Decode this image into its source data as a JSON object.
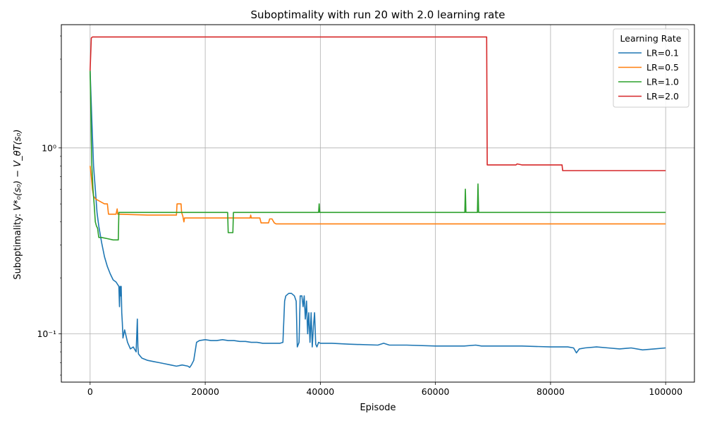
{
  "chart_data": {
    "type": "line",
    "title": "Suboptimality with run 20 with 2.0 learning rate",
    "xlabel": "Episode",
    "ylabel_prefix": "Suboptimality: ",
    "ylabel_math": "V*₀(s₀) − V_θT(s₀)",
    "x_scale": "linear",
    "y_scale": "log",
    "xlim": [
      -5000,
      105000
    ],
    "ylim": [
      0.055,
      4.6
    ],
    "grid": true,
    "x_ticks": [
      0,
      20000,
      40000,
      60000,
      80000,
      100000
    ],
    "x_tick_labels": [
      "0",
      "20000",
      "40000",
      "60000",
      "80000",
      "100000"
    ],
    "y_ticks": [
      0.1,
      1.0
    ],
    "y_tick_labels": [
      "10⁻¹",
      "10⁰"
    ],
    "y_minor_ticks": [
      0.06,
      0.07,
      0.08,
      0.09,
      0.2,
      0.3,
      0.4,
      0.5,
      0.6,
      0.7,
      0.8,
      0.9,
      2,
      3,
      4
    ],
    "legend": {
      "title": "Learning Rate",
      "placement": "top-right",
      "entries": [
        "LR=0.1",
        "LR=0.5",
        "LR=1.0",
        "LR=2.0"
      ]
    },
    "series": [
      {
        "name": "LR=0.1",
        "color": "#1f77b4",
        "x": [
          0,
          300,
          600,
          900,
          1200,
          1500,
          2000,
          2500,
          3000,
          3500,
          4000,
          4500,
          5000,
          5100,
          5200,
          5300,
          5400,
          5500,
          5600,
          5700,
          6000,
          6500,
          7000,
          7500,
          8000,
          8200,
          8300,
          8400,
          8700,
          9000,
          10000,
          11000,
          12000,
          13000,
          14000,
          15000,
          16000,
          17000,
          17300,
          17600,
          18000,
          18500,
          19000,
          20000,
          21000,
          22000,
          23000,
          24000,
          25000,
          26000,
          27000,
          28000,
          29000,
          30000,
          31000,
          32000,
          33000,
          33500,
          33800,
          34000,
          34500,
          35000,
          35500,
          35800,
          36000,
          36300,
          36500,
          36800,
          37000,
          37200,
          37400,
          37600,
          37800,
          38000,
          38200,
          38400,
          38600,
          38800,
          39000,
          39200,
          39400,
          39700,
          40000,
          42000,
          45000,
          50000,
          51000,
          52000,
          55000,
          60000,
          62000,
          65000,
          67000,
          68000,
          70000,
          75000,
          80000,
          82000,
          83000,
          84000,
          84500,
          85000,
          86000,
          88000,
          90000,
          92000,
          94000,
          96000,
          98000,
          100000
        ],
        "y": [
          2.6,
          1.4,
          0.8,
          0.6,
          0.45,
          0.38,
          0.31,
          0.26,
          0.23,
          0.21,
          0.195,
          0.19,
          0.18,
          0.14,
          0.18,
          0.16,
          0.18,
          0.13,
          0.115,
          0.095,
          0.105,
          0.09,
          0.083,
          0.085,
          0.08,
          0.12,
          0.085,
          0.078,
          0.076,
          0.074,
          0.072,
          0.071,
          0.07,
          0.069,
          0.068,
          0.067,
          0.068,
          0.067,
          0.066,
          0.068,
          0.072,
          0.09,
          0.092,
          0.093,
          0.092,
          0.092,
          0.093,
          0.092,
          0.092,
          0.091,
          0.091,
          0.09,
          0.09,
          0.089,
          0.089,
          0.089,
          0.089,
          0.09,
          0.15,
          0.16,
          0.165,
          0.165,
          0.16,
          0.15,
          0.085,
          0.09,
          0.16,
          0.16,
          0.14,
          0.16,
          0.12,
          0.15,
          0.1,
          0.13,
          0.09,
          0.13,
          0.085,
          0.11,
          0.13,
          0.088,
          0.085,
          0.09,
          0.089,
          0.089,
          0.088,
          0.087,
          0.089,
          0.087,
          0.087,
          0.086,
          0.086,
          0.086,
          0.087,
          0.086,
          0.086,
          0.086,
          0.085,
          0.085,
          0.085,
          0.084,
          0.079,
          0.083,
          0.084,
          0.085,
          0.084,
          0.083,
          0.084,
          0.082,
          0.083,
          0.084
        ]
      },
      {
        "name": "LR=0.5",
        "color": "#ff7f0e",
        "x": [
          0,
          200,
          400,
          600,
          1000,
          1500,
          2000,
          2500,
          3000,
          3200,
          3300,
          4500,
          4700,
          4800,
          5000,
          10000,
          15000,
          15100,
          15800,
          15900,
          16100,
          16300,
          16400,
          16500,
          20000,
          25000,
          27800,
          27900,
          28000,
          29500,
          29700,
          30500,
          31000,
          31200,
          31600,
          32000,
          32300,
          32500,
          35000,
          40000,
          50000,
          60000,
          70000,
          80000,
          90000,
          100000
        ],
        "y": [
          0.8,
          0.7,
          0.6,
          0.55,
          0.53,
          0.52,
          0.51,
          0.5,
          0.5,
          0.44,
          0.44,
          0.44,
          0.47,
          0.44,
          0.44,
          0.435,
          0.435,
          0.5,
          0.5,
          0.45,
          0.43,
          0.4,
          0.42,
          0.42,
          0.42,
          0.42,
          0.42,
          0.435,
          0.42,
          0.42,
          0.395,
          0.395,
          0.395,
          0.415,
          0.415,
          0.395,
          0.39,
          0.39,
          0.39,
          0.39,
          0.39,
          0.39,
          0.39,
          0.39,
          0.39,
          0.39
        ]
      },
      {
        "name": "LR=1.0",
        "color": "#2ca02c",
        "x": [
          0,
          100,
          200,
          300,
          500,
          700,
          900,
          1100,
          1300,
          1500,
          1700,
          2000,
          3000,
          4000,
          4900,
          5000,
          5100,
          10000,
          20000,
          23900,
          24000,
          24800,
          24900,
          30000,
          39700,
          39800,
          39900,
          40000,
          45000,
          50000,
          55000,
          60000,
          65100,
          65200,
          65300,
          67300,
          67400,
          67500,
          70000,
          80000,
          90000,
          100000
        ],
        "y": [
          2.6,
          1.8,
          1.1,
          0.8,
          0.6,
          0.5,
          0.4,
          0.38,
          0.37,
          0.33,
          0.33,
          0.33,
          0.325,
          0.32,
          0.32,
          0.45,
          0.45,
          0.45,
          0.45,
          0.45,
          0.35,
          0.35,
          0.45,
          0.45,
          0.45,
          0.5,
          0.45,
          0.45,
          0.45,
          0.45,
          0.45,
          0.45,
          0.45,
          0.6,
          0.45,
          0.45,
          0.64,
          0.45,
          0.45,
          0.45,
          0.45,
          0.45
        ]
      },
      {
        "name": "LR=2.0",
        "color": "#d62728",
        "x": [
          0,
          200,
          400,
          1000,
          10000,
          20000,
          30000,
          40000,
          50000,
          60000,
          68900,
          69000,
          70000,
          74000,
          74200,
          75000,
          82000,
          82100,
          85000,
          90000,
          95000,
          100000
        ],
        "y": [
          2.6,
          3.9,
          3.95,
          3.95,
          3.95,
          3.95,
          3.95,
          3.95,
          3.95,
          3.95,
          3.95,
          0.81,
          0.81,
          0.81,
          0.82,
          0.81,
          0.81,
          0.755,
          0.755,
          0.755,
          0.755,
          0.755
        ]
      }
    ]
  }
}
